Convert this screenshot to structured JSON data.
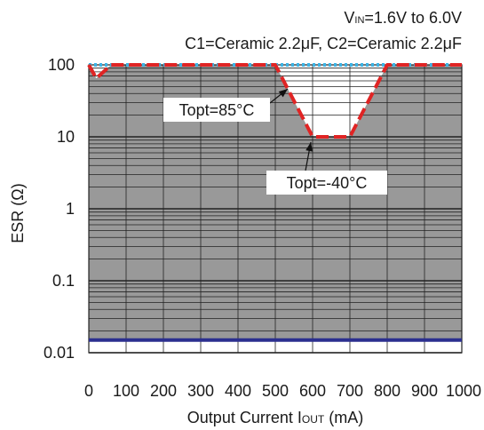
{
  "chart_data": {
    "type": "line",
    "title": "",
    "annotations_top": {
      "vin_prefix": "V",
      "vin_sub": "IN",
      "vin_value": "=1.6V to 6.0V",
      "caps": "C1=Ceramic 2.2μF, C2=Ceramic 2.2μF"
    },
    "xlabel": {
      "prefix": "Output Current I",
      "sub": "OUT",
      "suffix": " (mA)"
    },
    "ylabel": "ESR (Ω)",
    "xlim": [
      0,
      1000
    ],
    "ylim": [
      0.01,
      100
    ],
    "y_scale": "log",
    "grid": true,
    "x_ticks": [
      "0",
      "100",
      "200",
      "300",
      "400",
      "500",
      "600",
      "700",
      "800",
      "900",
      "1000"
    ],
    "y_ticks": [
      "0.01",
      "0.1",
      "1",
      "10",
      "100"
    ],
    "stable_region": {
      "lower_esr": 0.015,
      "color": "#999999"
    },
    "series": [
      {
        "name": "Topt=85°C",
        "color": "#3cb4e5",
        "style": "dotted",
        "x": [
          0,
          1000
        ],
        "y": [
          100,
          100
        ]
      },
      {
        "name": "Topt=-40°C",
        "color": "#e02424",
        "style": "dashed",
        "x": [
          0,
          20,
          60,
          500,
          600,
          700,
          800,
          1000
        ],
        "y": [
          100,
          65,
          100,
          100,
          10,
          10,
          100,
          100
        ]
      },
      {
        "name": "",
        "color": "#2b2f8f",
        "style": "solid",
        "x": [
          0,
          1000
        ],
        "y": [
          0.015,
          0.015
        ]
      }
    ],
    "callouts": [
      {
        "text": "Topt=85°C",
        "x": 570,
        "y": 45
      },
      {
        "text": "Topt=-40°C",
        "x": 590,
        "y": 9
      }
    ]
  }
}
